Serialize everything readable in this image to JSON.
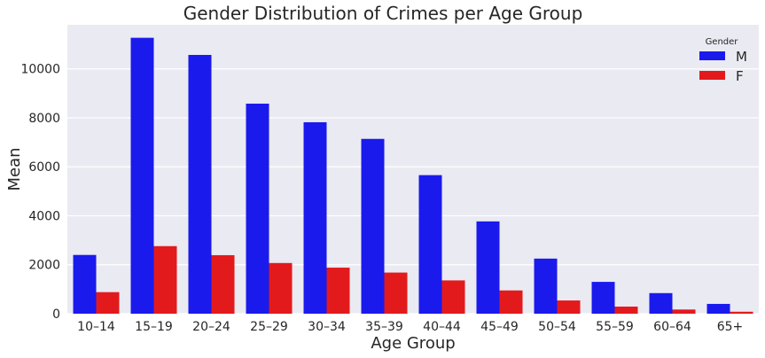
{
  "chart_data": {
    "type": "bar",
    "title": "Gender Distribution of Crimes per Age Group",
    "xlabel": "Age Group",
    "ylabel": "Mean",
    "ylim": [
      0,
      11800
    ],
    "yticks": [
      0,
      2000,
      4000,
      6000,
      8000,
      10000
    ],
    "grid": true,
    "legend": {
      "title": "Gender",
      "position": "top-right"
    },
    "categories": [
      "10–14",
      "15–19",
      "20–24",
      "25–29",
      "30–34",
      "35–39",
      "40–44",
      "45–49",
      "50–54",
      "55–59",
      "60–64",
      "65+"
    ],
    "series": [
      {
        "name": "M",
        "color": "#1a1aed",
        "values": [
          2400,
          11270,
          10570,
          8580,
          7820,
          7140,
          5660,
          3770,
          2250,
          1300,
          840,
          400
        ]
      },
      {
        "name": "F",
        "color": "#e31a1c",
        "values": [
          880,
          2760,
          2390,
          2070,
          1880,
          1680,
          1360,
          950,
          540,
          290,
          170,
          80
        ]
      }
    ]
  }
}
